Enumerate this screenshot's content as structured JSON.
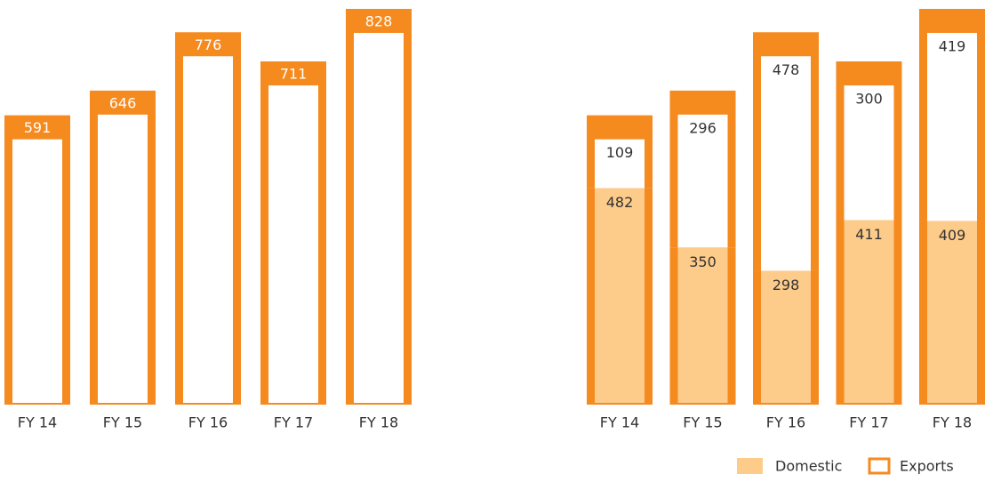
{
  "chart_data": [
    {
      "type": "bar",
      "categories": [
        "FY 14",
        "FY 15",
        "FY 16",
        "FY 17",
        "FY 18"
      ],
      "values": [
        591,
        646,
        776,
        711,
        828
      ],
      "color": "#f58a1f"
    },
    {
      "type": "stacked_bar",
      "categories": [
        "FY 14",
        "FY 15",
        "FY 16",
        "FY 17",
        "FY 18"
      ],
      "series": [
        {
          "name": "Domestic",
          "color": "#fdcb8a",
          "values": [
            482,
            350,
            298,
            411,
            409
          ]
        },
        {
          "name": "Exports",
          "color": "#f58a1f",
          "values": [
            109,
            296,
            478,
            300,
            419
          ]
        }
      ]
    }
  ]
}
